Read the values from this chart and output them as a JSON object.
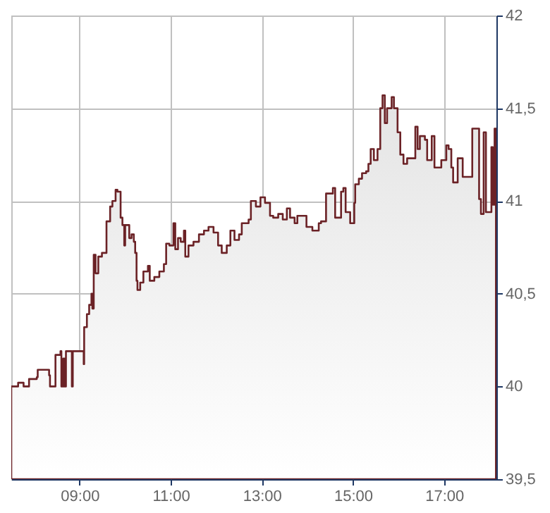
{
  "chart_data": {
    "type": "area",
    "x": [
      7.5,
      7.65,
      7.77,
      7.89,
      8.06,
      8.08,
      8.33,
      8.35,
      8.47,
      8.58,
      8.6,
      8.64,
      8.67,
      8.7,
      8.83,
      8.85,
      9.09,
      9.1,
      9.11,
      9.16,
      9.21,
      9.26,
      9.28,
      9.31,
      9.35,
      9.41,
      9.49,
      9.59,
      9.67,
      9.72,
      9.79,
      9.83,
      9.9,
      9.94,
      9.98,
      10.0,
      10.09,
      10.14,
      10.19,
      10.22,
      10.25,
      10.27,
      10.33,
      10.4,
      10.5,
      10.54,
      10.64,
      10.75,
      10.85,
      10.9,
      10.97,
      11.06,
      11.1,
      11.16,
      11.22,
      11.29,
      11.32,
      11.39,
      11.5,
      11.62,
      11.73,
      11.83,
      11.94,
      12.04,
      12.12,
      12.23,
      12.31,
      12.4,
      12.5,
      12.56,
      12.71,
      12.76,
      12.87,
      12.97,
      13.07,
      13.18,
      13.25,
      13.36,
      13.46,
      13.55,
      13.62,
      13.72,
      13.78,
      13.98,
      14.11,
      14.25,
      14.3,
      14.41,
      14.56,
      14.61,
      14.74,
      14.79,
      14.84,
      14.94,
      15.03,
      15.05,
      15.13,
      15.2,
      15.29,
      15.34,
      15.39,
      15.46,
      15.54,
      15.6,
      15.65,
      15.7,
      15.75,
      15.85,
      15.9,
      15.98,
      16.04,
      16.11,
      16.19,
      16.37,
      16.42,
      16.47,
      16.58,
      16.63,
      16.73,
      16.79,
      16.94,
      17.05,
      17.1,
      17.16,
      17.2,
      17.3,
      17.41,
      17.5,
      17.62,
      17.77,
      17.81,
      17.87,
      17.92,
      18.04,
      18.07,
      18.11,
      18.14
    ],
    "series": [
      {
        "color": "#6b2226",
        "values": [
          40.0,
          40.02,
          40.0,
          40.04,
          40.05,
          40.09,
          40.06,
          40.0,
          40.17,
          40.19,
          40.0,
          40.15,
          40.0,
          40.19,
          40.0,
          40.19,
          40.12,
          40.32,
          40.32,
          40.39,
          40.44,
          40.5,
          40.42,
          40.71,
          40.61,
          40.7,
          40.72,
          40.89,
          40.97,
          41.0,
          41.06,
          41.05,
          40.91,
          40.87,
          40.76,
          40.87,
          40.8,
          40.82,
          40.78,
          40.72,
          40.57,
          40.52,
          40.56,
          40.62,
          40.65,
          40.57,
          40.59,
          40.62,
          40.66,
          40.77,
          40.76,
          40.88,
          40.74,
          40.8,
          40.78,
          40.84,
          40.7,
          40.76,
          40.78,
          40.82,
          40.84,
          40.86,
          40.83,
          40.76,
          40.72,
          40.76,
          40.84,
          40.79,
          40.82,
          40.88,
          40.9,
          41.0,
          40.97,
          41.02,
          40.99,
          40.92,
          40.91,
          40.93,
          40.9,
          40.96,
          40.91,
          40.88,
          40.92,
          40.86,
          40.84,
          40.88,
          40.89,
          41.04,
          41.07,
          40.91,
          41.05,
          41.07,
          40.94,
          40.88,
          40.99,
          41.09,
          41.12,
          41.15,
          41.16,
          41.2,
          41.28,
          41.22,
          41.28,
          41.5,
          41.57,
          41.42,
          41.5,
          41.56,
          41.5,
          41.37,
          41.25,
          41.2,
          41.23,
          41.4,
          41.28,
          41.35,
          41.33,
          41.22,
          41.35,
          41.18,
          41.22,
          41.3,
          41.28,
          41.18,
          41.1,
          41.23,
          41.13,
          41.13,
          41.39,
          41.01,
          40.93,
          41.37,
          40.94,
          41.29,
          40.98,
          41.39,
          41.02
        ]
      }
    ],
    "xlim": [
      7.5,
      18.15
    ],
    "xticks": [
      {
        "value": 9,
        "label": "09:00"
      },
      {
        "value": 11,
        "label": "11:00"
      },
      {
        "value": 13,
        "label": "13:00"
      },
      {
        "value": 15,
        "label": "15:00"
      },
      {
        "value": 17,
        "label": "17:00"
      }
    ],
    "ylim": [
      39.5,
      42
    ],
    "yticks": [
      {
        "value": 39.5,
        "label": "39,5"
      },
      {
        "value": 40,
        "label": "40"
      },
      {
        "value": 40.5,
        "label": "40,5"
      },
      {
        "value": 41,
        "label": "41"
      },
      {
        "value": 41.5,
        "label": "41,5"
      },
      {
        "value": 42,
        "label": "42"
      }
    ],
    "grid": true
  }
}
